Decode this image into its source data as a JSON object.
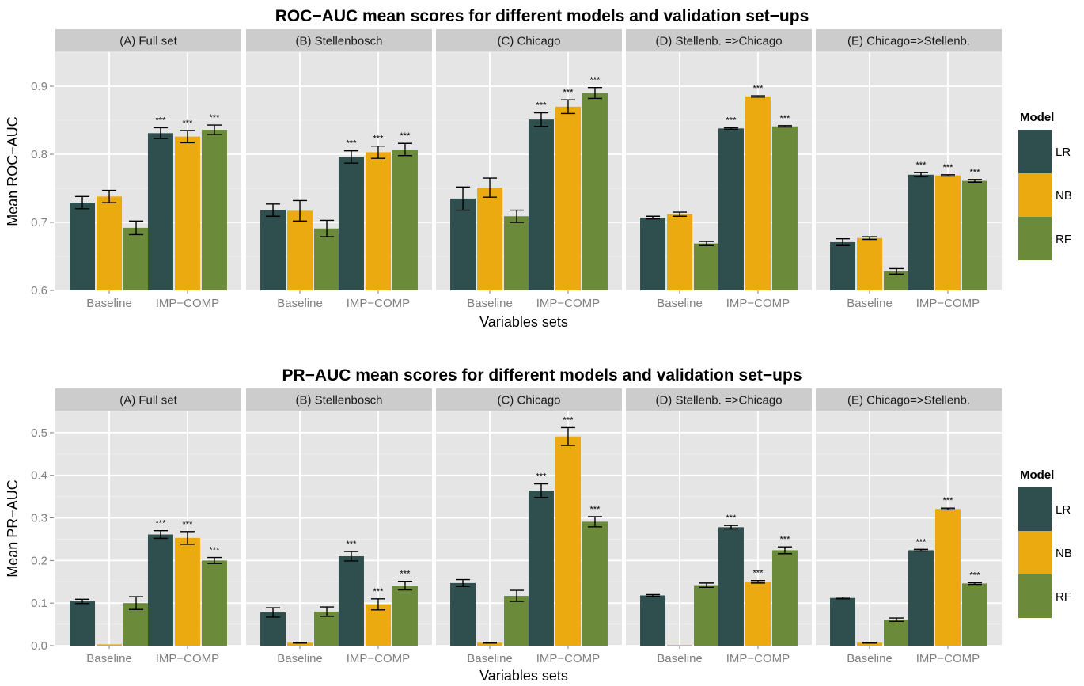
{
  "colors": {
    "LR": "#2f4f4f",
    "NB": "#eaaa10",
    "RF": "#6b8a3a",
    "panel_bg": "#e5e5e5",
    "strip_bg": "#cccccc",
    "grid_major": "#ffffff",
    "grid_minor": "#efefef"
  },
  "legend": {
    "title": "Model",
    "items": [
      "LR",
      "NB",
      "RF"
    ]
  },
  "chart_data": [
    {
      "type": "bar",
      "title": "ROC−AUC mean scores for different models and validation set−ups",
      "xlabel": "Variables sets",
      "ylabel": "Mean ROC−AUC",
      "ylim": [
        0.6,
        0.95
      ],
      "yticks": [
        "0.6",
        "0.7",
        "0.8",
        "0.9"
      ],
      "categories": [
        "Baseline",
        "IMP−COMP"
      ],
      "facets": [
        {
          "label": "(A) Full set",
          "series": [
            {
              "name": "LR",
              "values": [
                0.729,
                0.831
              ],
              "errors": [
                0.009,
                0.008
              ],
              "sig": [
                "",
                "***"
              ]
            },
            {
              "name": "NB",
              "values": [
                0.738,
                0.826
              ],
              "errors": [
                0.009,
                0.009
              ],
              "sig": [
                "",
                "***"
              ]
            },
            {
              "name": "RF",
              "values": [
                0.692,
                0.836
              ],
              "errors": [
                0.01,
                0.007
              ],
              "sig": [
                "",
                "***"
              ]
            }
          ]
        },
        {
          "label": "(B) Stellenbosch",
          "series": [
            {
              "name": "LR",
              "values": [
                0.718,
                0.796
              ],
              "errors": [
                0.009,
                0.009
              ],
              "sig": [
                "",
                "***"
              ]
            },
            {
              "name": "NB",
              "values": [
                0.717,
                0.803
              ],
              "errors": [
                0.015,
                0.009
              ],
              "sig": [
                "",
                "***"
              ]
            },
            {
              "name": "RF",
              "values": [
                0.691,
                0.807
              ],
              "errors": [
                0.012,
                0.009
              ],
              "sig": [
                "",
                "***"
              ]
            }
          ]
        },
        {
          "label": "(C) Chicago",
          "series": [
            {
              "name": "LR",
              "values": [
                0.735,
                0.851
              ],
              "errors": [
                0.017,
                0.01
              ],
              "sig": [
                "",
                "***"
              ]
            },
            {
              "name": "NB",
              "values": [
                0.751,
                0.87
              ],
              "errors": [
                0.014,
                0.01
              ],
              "sig": [
                "",
                "***"
              ]
            },
            {
              "name": "RF",
              "values": [
                0.709,
                0.89
              ],
              "errors": [
                0.009,
                0.008
              ],
              "sig": [
                "",
                "***"
              ]
            }
          ]
        },
        {
          "label": "(D) Stellenb. =>Chicago",
          "series": [
            {
              "name": "LR",
              "values": [
                0.707,
                0.838
              ],
              "errors": [
                0.002,
                0.001
              ],
              "sig": [
                "",
                "***"
              ]
            },
            {
              "name": "NB",
              "values": [
                0.712,
                0.885
              ],
              "errors": [
                0.003,
                0.001
              ],
              "sig": [
                "",
                "***"
              ]
            },
            {
              "name": "RF",
              "values": [
                0.669,
                0.841
              ],
              "errors": [
                0.003,
                0.001
              ],
              "sig": [
                "",
                "***"
              ]
            }
          ]
        },
        {
          "label": "(E) Chicago=>Stellenb.",
          "series": [
            {
              "name": "LR",
              "values": [
                0.671,
                0.77
              ],
              "errors": [
                0.005,
                0.003
              ],
              "sig": [
                "",
                "***"
              ]
            },
            {
              "name": "NB",
              "values": [
                0.677,
                0.769
              ],
              "errors": [
                0.002,
                0.001
              ],
              "sig": [
                "",
                "***"
              ]
            },
            {
              "name": "RF",
              "values": [
                0.628,
                0.761
              ],
              "errors": [
                0.004,
                0.002
              ],
              "sig": [
                "",
                "***"
              ]
            }
          ]
        }
      ]
    },
    {
      "type": "bar",
      "title": "PR−AUC mean scores for different models and validation set−ups",
      "xlabel": "Variables sets",
      "ylabel": "Mean PR−AUC",
      "ylim": [
        0.0,
        0.55
      ],
      "yticks": [
        "0.0",
        "0.1",
        "0.2",
        "0.3",
        "0.4",
        "0.5"
      ],
      "categories": [
        "Baseline",
        "IMP−COMP"
      ],
      "facets": [
        {
          "label": "(A) Full set",
          "series": [
            {
              "name": "LR",
              "values": [
                0.104,
                0.261
              ],
              "errors": [
                0.005,
                0.009
              ],
              "sig": [
                "",
                "***"
              ]
            },
            {
              "name": "NB",
              "values": [
                0.003,
                0.253
              ],
              "errors": [
                0.0,
                0.015
              ],
              "sig": [
                "",
                "***"
              ]
            },
            {
              "name": "RF",
              "values": [
                0.1,
                0.2
              ],
              "errors": [
                0.015,
                0.007
              ],
              "sig": [
                "",
                "***"
              ]
            }
          ]
        },
        {
          "label": "(B) Stellenbosch",
          "series": [
            {
              "name": "LR",
              "values": [
                0.078,
                0.21
              ],
              "errors": [
                0.011,
                0.011
              ],
              "sig": [
                "",
                "***"
              ]
            },
            {
              "name": "NB",
              "values": [
                0.007,
                0.097
              ],
              "errors": [
                0.001,
                0.013
              ],
              "sig": [
                "",
                "***"
              ]
            },
            {
              "name": "RF",
              "values": [
                0.08,
                0.141
              ],
              "errors": [
                0.011,
                0.01
              ],
              "sig": [
                "",
                "***"
              ]
            }
          ]
        },
        {
          "label": "(C) Chicago",
          "series": [
            {
              "name": "LR",
              "values": [
                0.147,
                0.364
              ],
              "errors": [
                0.008,
                0.016
              ],
              "sig": [
                "",
                "***"
              ]
            },
            {
              "name": "NB",
              "values": [
                0.007,
                0.491
              ],
              "errors": [
                0.001,
                0.021
              ],
              "sig": [
                "",
                "***"
              ]
            },
            {
              "name": "RF",
              "values": [
                0.117,
                0.291
              ],
              "errors": [
                0.013,
                0.012
              ],
              "sig": [
                "",
                "***"
              ]
            }
          ]
        },
        {
          "label": "(D) Stellenb. =>Chicago",
          "series": [
            {
              "name": "LR",
              "values": [
                0.118,
                0.278
              ],
              "errors": [
                0.002,
                0.004
              ],
              "sig": [
                "",
                "***"
              ]
            },
            {
              "name": "NB",
              "values": [
                0.001,
                0.15
              ],
              "errors": [
                0.0,
                0.003
              ],
              "sig": [
                "",
                "***"
              ]
            },
            {
              "name": "RF",
              "values": [
                0.142,
                0.224
              ],
              "errors": [
                0.005,
                0.008
              ],
              "sig": [
                "",
                "***"
              ]
            }
          ]
        },
        {
          "label": "(E) Chicago=>Stellenb.",
          "series": [
            {
              "name": "LR",
              "values": [
                0.112,
                0.224
              ],
              "errors": [
                0.002,
                0.002
              ],
              "sig": [
                "",
                "***"
              ]
            },
            {
              "name": "NB",
              "values": [
                0.007,
                0.321
              ],
              "errors": [
                0.001,
                0.002
              ],
              "sig": [
                "",
                "***"
              ]
            },
            {
              "name": "RF",
              "values": [
                0.061,
                0.146
              ],
              "errors": [
                0.004,
                0.002
              ],
              "sig": [
                "",
                "***"
              ]
            }
          ]
        }
      ]
    }
  ]
}
